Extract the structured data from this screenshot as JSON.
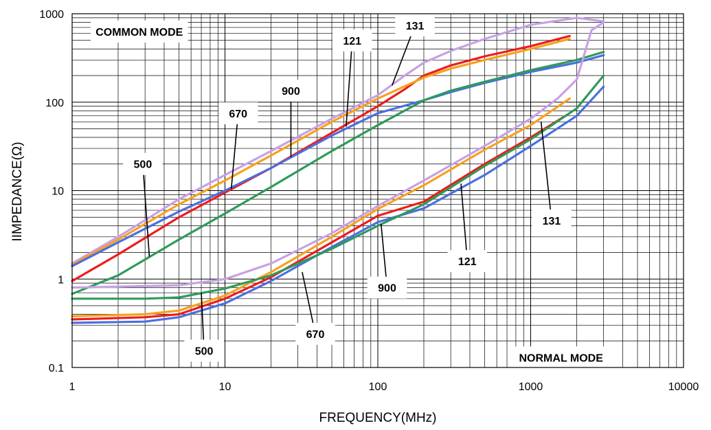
{
  "chart_data": {
    "type": "line",
    "xlabel": "FREQUENCY(MHz)",
    "ylabel": "IIMPEDANCE(Ω)",
    "xscale": "log",
    "yscale": "log",
    "xlim": [
      1,
      10000
    ],
    "ylim": [
      0.1,
      1000
    ],
    "grid": true,
    "x_ticks": [
      "1",
      "10",
      "100",
      "1000",
      "10000"
    ],
    "y_ticks": [
      "0.1",
      "1",
      "10",
      "100",
      "1000"
    ],
    "colors": {
      "131": "#c8a0e6",
      "121": "#ee1c1c",
      "900": "#f5a21d",
      "670": "#4a6fe0",
      "500": "#2e9a5a"
    },
    "section_labels": [
      {
        "text": "COMMON MODE",
        "x": 2.75,
        "y": 630
      },
      {
        "text": "NORMAL MODE",
        "x": 1580,
        "y": 0.13
      }
    ],
    "callouts": [
      {
        "text": "131",
        "mode": "common",
        "label_x": 175,
        "label_y": 740,
        "leader_x": 124,
        "leader_y": 155
      },
      {
        "text": "121",
        "mode": "common",
        "label_x": 68,
        "label_y": 500,
        "leader_x": 62,
        "leader_y": 53
      },
      {
        "text": "900",
        "mode": "common",
        "label_x": 27,
        "label_y": 135,
        "leader_x": 27,
        "leader_y": 24
      },
      {
        "text": "670",
        "mode": "common",
        "label_x": 12.2,
        "label_y": 75,
        "leader_x": 11,
        "leader_y": 10.5
      },
      {
        "text": "500",
        "mode": "common",
        "label_x": 2.9,
        "label_y": 20,
        "leader_x": 3.2,
        "leader_y": 1.8
      },
      {
        "text": "500",
        "mode": "normal",
        "label_x": 7.3,
        "label_y": 0.155,
        "leader_x": 7,
        "leader_y": 0.7
      },
      {
        "text": "670",
        "mode": "normal",
        "label_x": 39,
        "label_y": 0.24,
        "leader_x": 32,
        "leader_y": 1.2
      },
      {
        "text": "900",
        "mode": "normal",
        "label_x": 115,
        "label_y": 0.8,
        "leader_x": 105,
        "leader_y": 4.2
      },
      {
        "text": "121",
        "mode": "normal",
        "label_x": 385,
        "label_y": 1.6,
        "leader_x": 350,
        "leader_y": 12
      },
      {
        "text": "131",
        "mode": "normal",
        "label_x": 1370,
        "label_y": 4.6,
        "leader_x": 1170,
        "leader_y": 60
      }
    ],
    "series": [
      {
        "id": "131",
        "mode": "common",
        "x": [
          1,
          2,
          5,
          10,
          20,
          50,
          100,
          150,
          200,
          300,
          500,
          1000,
          2000,
          3000
        ],
        "y": [
          1.5,
          3,
          8,
          15,
          28,
          65,
          120,
          200,
          280,
          380,
          520,
          750,
          900,
          820
        ]
      },
      {
        "id": "121",
        "mode": "common",
        "x": [
          1,
          2,
          5,
          10,
          20,
          50,
          100,
          150,
          200,
          300,
          500,
          1000,
          1800
        ],
        "y": [
          0.95,
          1.9,
          5,
          9.5,
          18,
          45,
          90,
          140,
          200,
          260,
          330,
          430,
          560
        ]
      },
      {
        "id": "900",
        "mode": "common",
        "x": [
          1,
          2,
          5,
          10,
          20,
          50,
          100,
          200,
          300,
          500,
          1000,
          1800
        ],
        "y": [
          1.45,
          2.8,
          7,
          13,
          25,
          60,
          110,
          190,
          240,
          300,
          400,
          520
        ]
      },
      {
        "id": "670",
        "mode": "common",
        "x": [
          1,
          2,
          5,
          10,
          20,
          50,
          100,
          200,
          300,
          500,
          1000,
          2000,
          3000
        ],
        "y": [
          1.4,
          2.6,
          5.8,
          10,
          18,
          42,
          75,
          105,
          130,
          165,
          220,
          280,
          340
        ]
      },
      {
        "id": "500",
        "mode": "common",
        "x": [
          1,
          2,
          5,
          10,
          20,
          50,
          100,
          200,
          300,
          500,
          1000,
          2000,
          3000
        ],
        "y": [
          0.68,
          1.1,
          2.8,
          5.5,
          11,
          28,
          55,
          105,
          135,
          170,
          230,
          300,
          370
        ]
      },
      {
        "id": "131",
        "mode": "normal",
        "x": [
          1,
          5,
          10,
          20,
          50,
          100,
          200,
          500,
          1000,
          1500,
          2000,
          2500,
          3000
        ],
        "y": [
          0.8,
          0.85,
          1.0,
          1.5,
          3.3,
          6.7,
          13,
          32,
          65,
          110,
          180,
          650,
          800
        ]
      },
      {
        "id": "900",
        "mode": "normal",
        "x": [
          1,
          3,
          5,
          10,
          20,
          50,
          100,
          200,
          500,
          1000,
          1800
        ],
        "y": [
          0.38,
          0.4,
          0.44,
          0.65,
          1.2,
          3,
          6.2,
          11.5,
          29,
          55,
          110
        ]
      },
      {
        "id": "121",
        "mode": "normal",
        "x": [
          1,
          3,
          5,
          10,
          20,
          50,
          100,
          200,
          500,
          1000,
          1800
        ],
        "y": [
          0.35,
          0.37,
          0.4,
          0.6,
          1.05,
          2.6,
          5.2,
          7.5,
          20,
          40,
          75
        ]
      },
      {
        "id": "670",
        "mode": "normal",
        "x": [
          1,
          3,
          5,
          10,
          20,
          50,
          100,
          200,
          500,
          1000,
          2000,
          3000
        ],
        "y": [
          0.32,
          0.33,
          0.37,
          0.53,
          0.95,
          2.3,
          4.4,
          6.3,
          15,
          32,
          70,
          150
        ]
      },
      {
        "id": "500",
        "mode": "normal",
        "x": [
          1,
          3,
          5,
          10,
          20,
          50,
          100,
          200,
          500,
          1000,
          2000,
          3000
        ],
        "y": [
          0.6,
          0.6,
          0.62,
          0.78,
          1.1,
          2.2,
          4,
          7,
          19,
          38,
          85,
          200
        ]
      }
    ]
  }
}
